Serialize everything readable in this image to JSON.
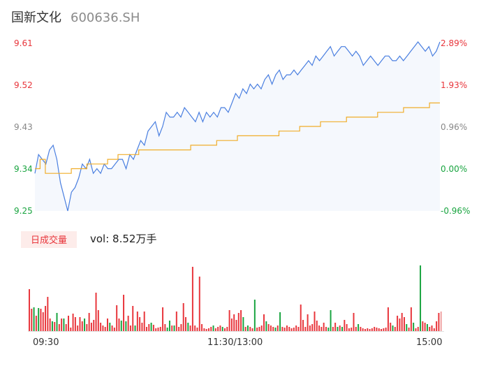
{
  "header": {
    "name": "国新文化",
    "code": "600636.SH"
  },
  "price_axis": {
    "left_labels": [
      "9.61",
      "9.52",
      "9.43",
      "9.34",
      "9.25"
    ],
    "right_labels": [
      "2.89%",
      "1.93%",
      "0.96%",
      "0.00%",
      "-0.96%"
    ]
  },
  "volume": {
    "badge": "日成交量",
    "summary": "vol: 8.52万手"
  },
  "time_axis": {
    "labels": [
      "09:30",
      "11:30/13:00",
      "15:00"
    ]
  },
  "colors": {
    "up": "#e8353b",
    "down": "#18a43f",
    "neutral": "#888888",
    "price_line": "#4a7fe0",
    "avg_line": "#f0ad2a",
    "area_fill": "#f5f8fd",
    "badge_bg": "#fdecea",
    "badge_text": "#e8353b"
  },
  "chart_data": {
    "type": "line",
    "ylim": [
      9.25,
      9.61
    ],
    "y_ticks": [
      9.61,
      9.52,
      9.43,
      9.34,
      9.25
    ],
    "pct_ticks": [
      "2.89%",
      "1.93%",
      "0.96%",
      "0.00%",
      "-0.96%"
    ],
    "prev_close": 9.34,
    "x_ticks": [
      "09:30",
      "11:30/13:00",
      "15:00"
    ],
    "series": [
      {
        "values": [
          9.33,
          9.37,
          9.36,
          9.35,
          9.38,
          9.39,
          9.36,
          9.31,
          9.28,
          9.25,
          9.29,
          9.3,
          9.32,
          9.35,
          9.34,
          9.36,
          9.33,
          9.34,
          9.33,
          9.35,
          9.34,
          9.34,
          9.35,
          9.36,
          9.36,
          9.34,
          9.37,
          9.36,
          9.38,
          9.4,
          9.39,
          9.42,
          9.43,
          9.44,
          9.41,
          9.43,
          9.46,
          9.45,
          9.45,
          9.46,
          9.45,
          9.47,
          9.46,
          9.45,
          9.44,
          9.46,
          9.44,
          9.46,
          9.45,
          9.46,
          9.45,
          9.47,
          9.47,
          9.46,
          9.48,
          9.5,
          9.49,
          9.51,
          9.5,
          9.52,
          9.51,
          9.52,
          9.51,
          9.53,
          9.54,
          9.52,
          9.54,
          9.55,
          9.53,
          9.54,
          9.54,
          9.55,
          9.54,
          9.55,
          9.56,
          9.57,
          9.56,
          9.58,
          9.57,
          9.58,
          9.59,
          9.6,
          9.58,
          9.59,
          9.6,
          9.6,
          9.59,
          9.58,
          9.59,
          9.58,
          9.56,
          9.57,
          9.58,
          9.57,
          9.56,
          9.57,
          9.58,
          9.58,
          9.57,
          9.57,
          9.58,
          9.57,
          9.58,
          9.59,
          9.6,
          9.61,
          9.6,
          9.59,
          9.6,
          9.58,
          9.59,
          9.61
        ]
      },
      {
        "values": [
          9.34,
          9.36,
          9.33,
          9.33,
          9.33,
          9.33,
          9.33,
          9.34,
          9.34,
          9.34,
          9.35,
          9.35,
          9.35,
          9.35,
          9.36,
          9.36,
          9.37,
          9.37,
          9.37,
          9.37,
          9.38,
          9.38,
          9.38,
          9.38,
          9.38,
          9.38,
          9.38,
          9.38,
          9.38,
          9.38,
          9.39,
          9.39,
          9.39,
          9.39,
          9.39,
          9.4,
          9.4,
          9.4,
          9.4,
          9.41,
          9.41,
          9.41,
          9.41,
          9.41,
          9.41,
          9.41,
          9.41,
          9.42,
          9.42,
          9.42,
          9.42,
          9.43,
          9.43,
          9.43,
          9.43,
          9.44,
          9.44,
          9.44,
          9.44,
          9.44,
          9.45,
          9.45,
          9.45,
          9.45,
          9.45,
          9.45,
          9.46,
          9.46,
          9.46,
          9.46,
          9.46,
          9.47,
          9.47,
          9.47,
          9.47,
          9.47,
          9.48,
          9.48,
          9.48
        ]
      }
    ],
    "volume_bars": [
      {
        "v": 60,
        "c": "up"
      },
      {
        "v": 32,
        "c": "up"
      },
      {
        "v": 34,
        "c": "down"
      },
      {
        "v": 22,
        "c": "up"
      },
      {
        "v": 33,
        "c": "down"
      },
      {
        "v": 32,
        "c": "up"
      },
      {
        "v": 27,
        "c": "up"
      },
      {
        "v": 36,
        "c": "up"
      },
      {
        "v": 49,
        "c": "up"
      },
      {
        "v": 18,
        "c": "up"
      },
      {
        "v": 14,
        "c": "down"
      },
      {
        "v": 13,
        "c": "up"
      },
      {
        "v": 26,
        "c": "down"
      },
      {
        "v": 10,
        "c": "up"
      },
      {
        "v": 18,
        "c": "up"
      },
      {
        "v": 18,
        "c": "down"
      },
      {
        "v": 10,
        "c": "up"
      },
      {
        "v": 22,
        "c": "up"
      },
      {
        "v": 5,
        "c": "up"
      },
      {
        "v": 25,
        "c": "up"
      },
      {
        "v": 20,
        "c": "up"
      },
      {
        "v": 8,
        "c": "up"
      },
      {
        "v": 20,
        "c": "up"
      },
      {
        "v": 14,
        "c": "up"
      },
      {
        "v": 18,
        "c": "down"
      },
      {
        "v": 10,
        "c": "up"
      },
      {
        "v": 26,
        "c": "up"
      },
      {
        "v": 12,
        "c": "up"
      },
      {
        "v": 16,
        "c": "up"
      },
      {
        "v": 55,
        "c": "up"
      },
      {
        "v": 30,
        "c": "up"
      },
      {
        "v": 12,
        "c": "up"
      },
      {
        "v": 8,
        "c": "up"
      },
      {
        "v": 6,
        "c": "up"
      },
      {
        "v": 18,
        "c": "up"
      },
      {
        "v": 12,
        "c": "down"
      },
      {
        "v": 8,
        "c": "up"
      },
      {
        "v": 5,
        "c": "up"
      },
      {
        "v": 37,
        "c": "up"
      },
      {
        "v": 18,
        "c": "up"
      },
      {
        "v": 15,
        "c": "down"
      },
      {
        "v": 52,
        "c": "up"
      },
      {
        "v": 14,
        "c": "down"
      },
      {
        "v": 22,
        "c": "up"
      },
      {
        "v": 8,
        "c": "up"
      },
      {
        "v": 36,
        "c": "up"
      },
      {
        "v": 8,
        "c": "down"
      },
      {
        "v": 28,
        "c": "up"
      },
      {
        "v": 20,
        "c": "up"
      },
      {
        "v": 12,
        "c": "up"
      },
      {
        "v": 28,
        "c": "up"
      },
      {
        "v": 6,
        "c": "up"
      },
      {
        "v": 10,
        "c": "up"
      },
      {
        "v": 12,
        "c": "down"
      },
      {
        "v": 9,
        "c": "up"
      },
      {
        "v": 4,
        "c": "up"
      },
      {
        "v": 5,
        "c": "up"
      },
      {
        "v": 6,
        "c": "up"
      },
      {
        "v": 34,
        "c": "up"
      },
      {
        "v": 10,
        "c": "up"
      },
      {
        "v": 5,
        "c": "down"
      },
      {
        "v": 15,
        "c": "down"
      },
      {
        "v": 8,
        "c": "up"
      },
      {
        "v": 8,
        "c": "down"
      },
      {
        "v": 28,
        "c": "up"
      },
      {
        "v": 6,
        "c": "up"
      },
      {
        "v": 10,
        "c": "up"
      },
      {
        "v": 40,
        "c": "up"
      },
      {
        "v": 20,
        "c": "up"
      },
      {
        "v": 12,
        "c": "down"
      },
      {
        "v": 8,
        "c": "up"
      },
      {
        "v": 92,
        "c": "up"
      },
      {
        "v": 8,
        "c": "up"
      },
      {
        "v": 5,
        "c": "up"
      },
      {
        "v": 78,
        "c": "up"
      },
      {
        "v": 10,
        "c": "up"
      },
      {
        "v": 4,
        "c": "up"
      },
      {
        "v": 3,
        "c": "up"
      },
      {
        "v": 4,
        "c": "up"
      },
      {
        "v": 6,
        "c": "up"
      },
      {
        "v": 8,
        "c": "down"
      },
      {
        "v": 4,
        "c": "up"
      },
      {
        "v": 6,
        "c": "up"
      },
      {
        "v": 8,
        "c": "up"
      },
      {
        "v": 6,
        "c": "down"
      },
      {
        "v": 4,
        "c": "up"
      },
      {
        "v": 6,
        "c": "up"
      },
      {
        "v": 30,
        "c": "up"
      },
      {
        "v": 18,
        "c": "up"
      },
      {
        "v": 24,
        "c": "up"
      },
      {
        "v": 16,
        "c": "up"
      },
      {
        "v": 26,
        "c": "up"
      },
      {
        "v": 30,
        "c": "up"
      },
      {
        "v": 20,
        "c": "down"
      },
      {
        "v": 6,
        "c": "up"
      },
      {
        "v": 8,
        "c": "down"
      },
      {
        "v": 6,
        "c": "up"
      },
      {
        "v": 4,
        "c": "up"
      },
      {
        "v": 45,
        "c": "down"
      },
      {
        "v": 5,
        "c": "up"
      },
      {
        "v": 6,
        "c": "up"
      },
      {
        "v": 8,
        "c": "up"
      },
      {
        "v": 24,
        "c": "up"
      },
      {
        "v": 14,
        "c": "down"
      },
      {
        "v": 10,
        "c": "up"
      },
      {
        "v": 8,
        "c": "up"
      },
      {
        "v": 6,
        "c": "up"
      },
      {
        "v": 5,
        "c": "down"
      },
      {
        "v": 8,
        "c": "up"
      },
      {
        "v": 27,
        "c": "down"
      },
      {
        "v": 6,
        "c": "up"
      },
      {
        "v": 5,
        "c": "up"
      },
      {
        "v": 8,
        "c": "up"
      },
      {
        "v": 6,
        "c": "up"
      },
      {
        "v": 4,
        "c": "up"
      },
      {
        "v": 5,
        "c": "up"
      },
      {
        "v": 8,
        "c": "up"
      },
      {
        "v": 6,
        "c": "up"
      },
      {
        "v": 38,
        "c": "up"
      },
      {
        "v": 16,
        "c": "up"
      },
      {
        "v": 6,
        "c": "up"
      },
      {
        "v": 24,
        "c": "up"
      },
      {
        "v": 8,
        "c": "up"
      },
      {
        "v": 10,
        "c": "up"
      },
      {
        "v": 28,
        "c": "up"
      },
      {
        "v": 15,
        "c": "up"
      },
      {
        "v": 8,
        "c": "up"
      },
      {
        "v": 6,
        "c": "up"
      },
      {
        "v": 12,
        "c": "up"
      },
      {
        "v": 6,
        "c": "up"
      },
      {
        "v": 5,
        "c": "down"
      },
      {
        "v": 30,
        "c": "down"
      },
      {
        "v": 6,
        "c": "up"
      },
      {
        "v": 12,
        "c": "up"
      },
      {
        "v": 6,
        "c": "down"
      },
      {
        "v": 8,
        "c": "up"
      },
      {
        "v": 6,
        "c": "down"
      },
      {
        "v": 16,
        "c": "up"
      },
      {
        "v": 10,
        "c": "up"
      },
      {
        "v": 4,
        "c": "up"
      },
      {
        "v": 5,
        "c": "up"
      },
      {
        "v": 26,
        "c": "up"
      },
      {
        "v": 6,
        "c": "up"
      },
      {
        "v": 10,
        "c": "down"
      },
      {
        "v": 6,
        "c": "up"
      },
      {
        "v": 4,
        "c": "up"
      },
      {
        "v": 3,
        "c": "up"
      },
      {
        "v": 4,
        "c": "up"
      },
      {
        "v": 3,
        "c": "up"
      },
      {
        "v": 4,
        "c": "up"
      },
      {
        "v": 6,
        "c": "up"
      },
      {
        "v": 5,
        "c": "up"
      },
      {
        "v": 4,
        "c": "up"
      },
      {
        "v": 3,
        "c": "up"
      },
      {
        "v": 4,
        "c": "up"
      },
      {
        "v": 5,
        "c": "up"
      },
      {
        "v": 34,
        "c": "up"
      },
      {
        "v": 12,
        "c": "up"
      },
      {
        "v": 8,
        "c": "down"
      },
      {
        "v": 6,
        "c": "up"
      },
      {
        "v": 22,
        "c": "up"
      },
      {
        "v": 18,
        "c": "up"
      },
      {
        "v": 26,
        "c": "up"
      },
      {
        "v": 20,
        "c": "up"
      },
      {
        "v": 10,
        "c": "down"
      },
      {
        "v": 5,
        "c": "up"
      },
      {
        "v": 34,
        "c": "up"
      },
      {
        "v": 12,
        "c": "down"
      },
      {
        "v": 4,
        "c": "up"
      },
      {
        "v": 6,
        "c": "up"
      },
      {
        "v": 94,
        "c": "down"
      },
      {
        "v": 14,
        "c": "up"
      },
      {
        "v": 12,
        "c": "up"
      },
      {
        "v": 10,
        "c": "down"
      },
      {
        "v": 6,
        "c": "up"
      },
      {
        "v": 8,
        "c": "up"
      },
      {
        "v": 4,
        "c": "up"
      },
      {
        "v": 14,
        "c": "up"
      },
      {
        "v": 26,
        "c": "up"
      },
      {
        "v": 28,
        "c": "neutral"
      }
    ]
  }
}
